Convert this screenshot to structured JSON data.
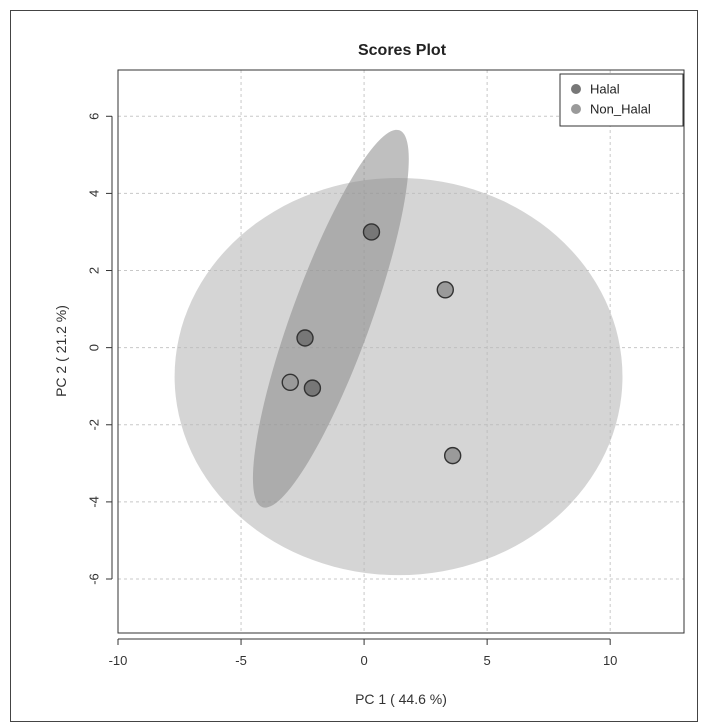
{
  "chart_data": {
    "type": "scatter",
    "title": "Scores Plot",
    "xlabel": "PC 1 ( 44.6 %)",
    "ylabel": "PC 2 ( 21.2 %)",
    "xlim": [
      -10,
      13
    ],
    "ylim": [
      -7.4,
      7.2
    ],
    "xticks": [
      -10,
      -5,
      0,
      5,
      10
    ],
    "yticks": [
      -6,
      -4,
      -2,
      0,
      2,
      4,
      6
    ],
    "grid": true,
    "legend_position": "top-right",
    "series": [
      {
        "name": "Halal",
        "color": "#777777",
        "points": [
          {
            "x": 0.3,
            "y": 3.0
          },
          {
            "x": -2.4,
            "y": 0.25
          },
          {
            "x": -2.1,
            "y": -1.05
          }
        ],
        "ellipse": {
          "cx": -1.35,
          "cy": 0.75,
          "rx": 1.6,
          "ry": 5.2,
          "rotation_deg": 20,
          "color": "#8a8a8a",
          "opacity": 0.55
        }
      },
      {
        "name": "Non_Halal",
        "color": "#9a9a9a",
        "points": [
          {
            "x": 3.3,
            "y": 1.5
          },
          {
            "x": -3.0,
            "y": -0.9
          },
          {
            "x": 3.6,
            "y": -2.8
          }
        ],
        "ellipse": {
          "cx": 1.4,
          "cy": -0.75,
          "rx": 9.1,
          "ry": 5.15,
          "rotation_deg": 0,
          "color": "#b9b9b9",
          "opacity": 0.6
        }
      }
    ]
  }
}
